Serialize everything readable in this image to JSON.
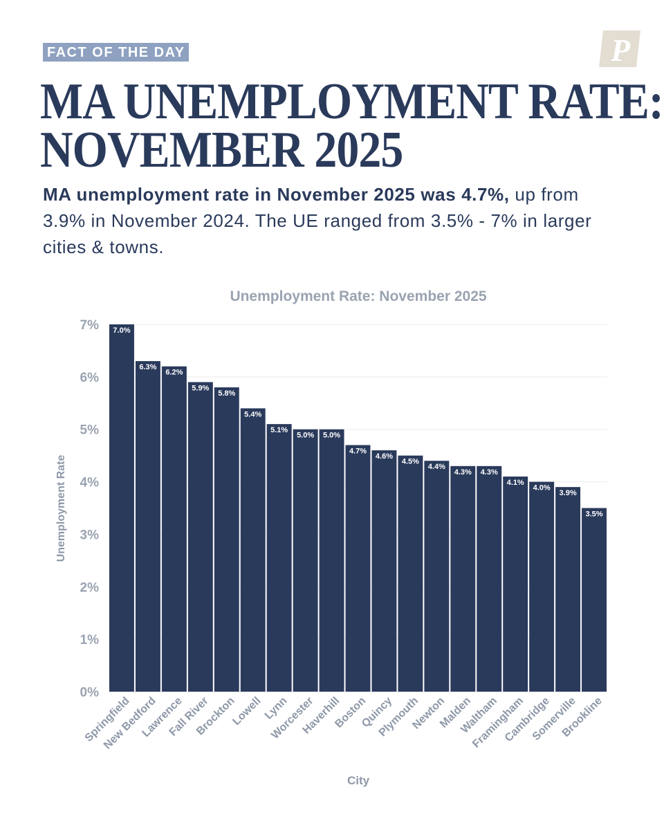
{
  "tag": "FACT OF THE DAY",
  "logo_letter": "P",
  "headline": [
    "MA UNEMPLOYMENT RATE:",
    "NOVEMBER 2025"
  ],
  "subtitle": {
    "bold": "MA unemployment rate in November 2025 was 4.7%,",
    "rest": " up from 3.9% in November 2024. The UE ranged from 3.5% - 7% in larger cities & towns."
  },
  "colors": {
    "bar": "#2a3a5b",
    "muted": "#8e98a8",
    "tag_bg": "#8ea1c0",
    "logo_bg": "#e3ddd2"
  },
  "chart_data": {
    "type": "bar",
    "title": "Unemployment Rate: November 2025",
    "xlabel": "City",
    "ylabel": "Unemployment Rate",
    "ylim": [
      0,
      7
    ],
    "yticks": [
      "0%",
      "1%",
      "2%",
      "3%",
      "4%",
      "5%",
      "6%",
      "7%"
    ],
    "categories": [
      "Springfield",
      "New Bedford",
      "Lawrence",
      "Fall River",
      "Brockton",
      "Lowell",
      "Lynn",
      "Worcester",
      "Haverhill",
      "Boston",
      "Quincy",
      "Plymouth",
      "Newton",
      "Malden",
      "Waltham",
      "Framingham",
      "Cambridge",
      "Somerville",
      "Brookline"
    ],
    "values": [
      7.0,
      6.3,
      6.2,
      5.9,
      5.8,
      5.4,
      5.1,
      5.0,
      5.0,
      4.7,
      4.6,
      4.5,
      4.4,
      4.3,
      4.3,
      4.1,
      4.0,
      3.9,
      3.5
    ],
    "value_labels": [
      "7.0%",
      "6.3%",
      "6.2%",
      "5.9%",
      "5.8%",
      "5.4%",
      "5.1%",
      "5.0%",
      "5.0%",
      "4.7%",
      "4.6%",
      "4.5%",
      "4.4%",
      "4.3%",
      "4.3%",
      "4.1%",
      "4.0%",
      "3.9%",
      "3.5%"
    ],
    "grid": true
  }
}
